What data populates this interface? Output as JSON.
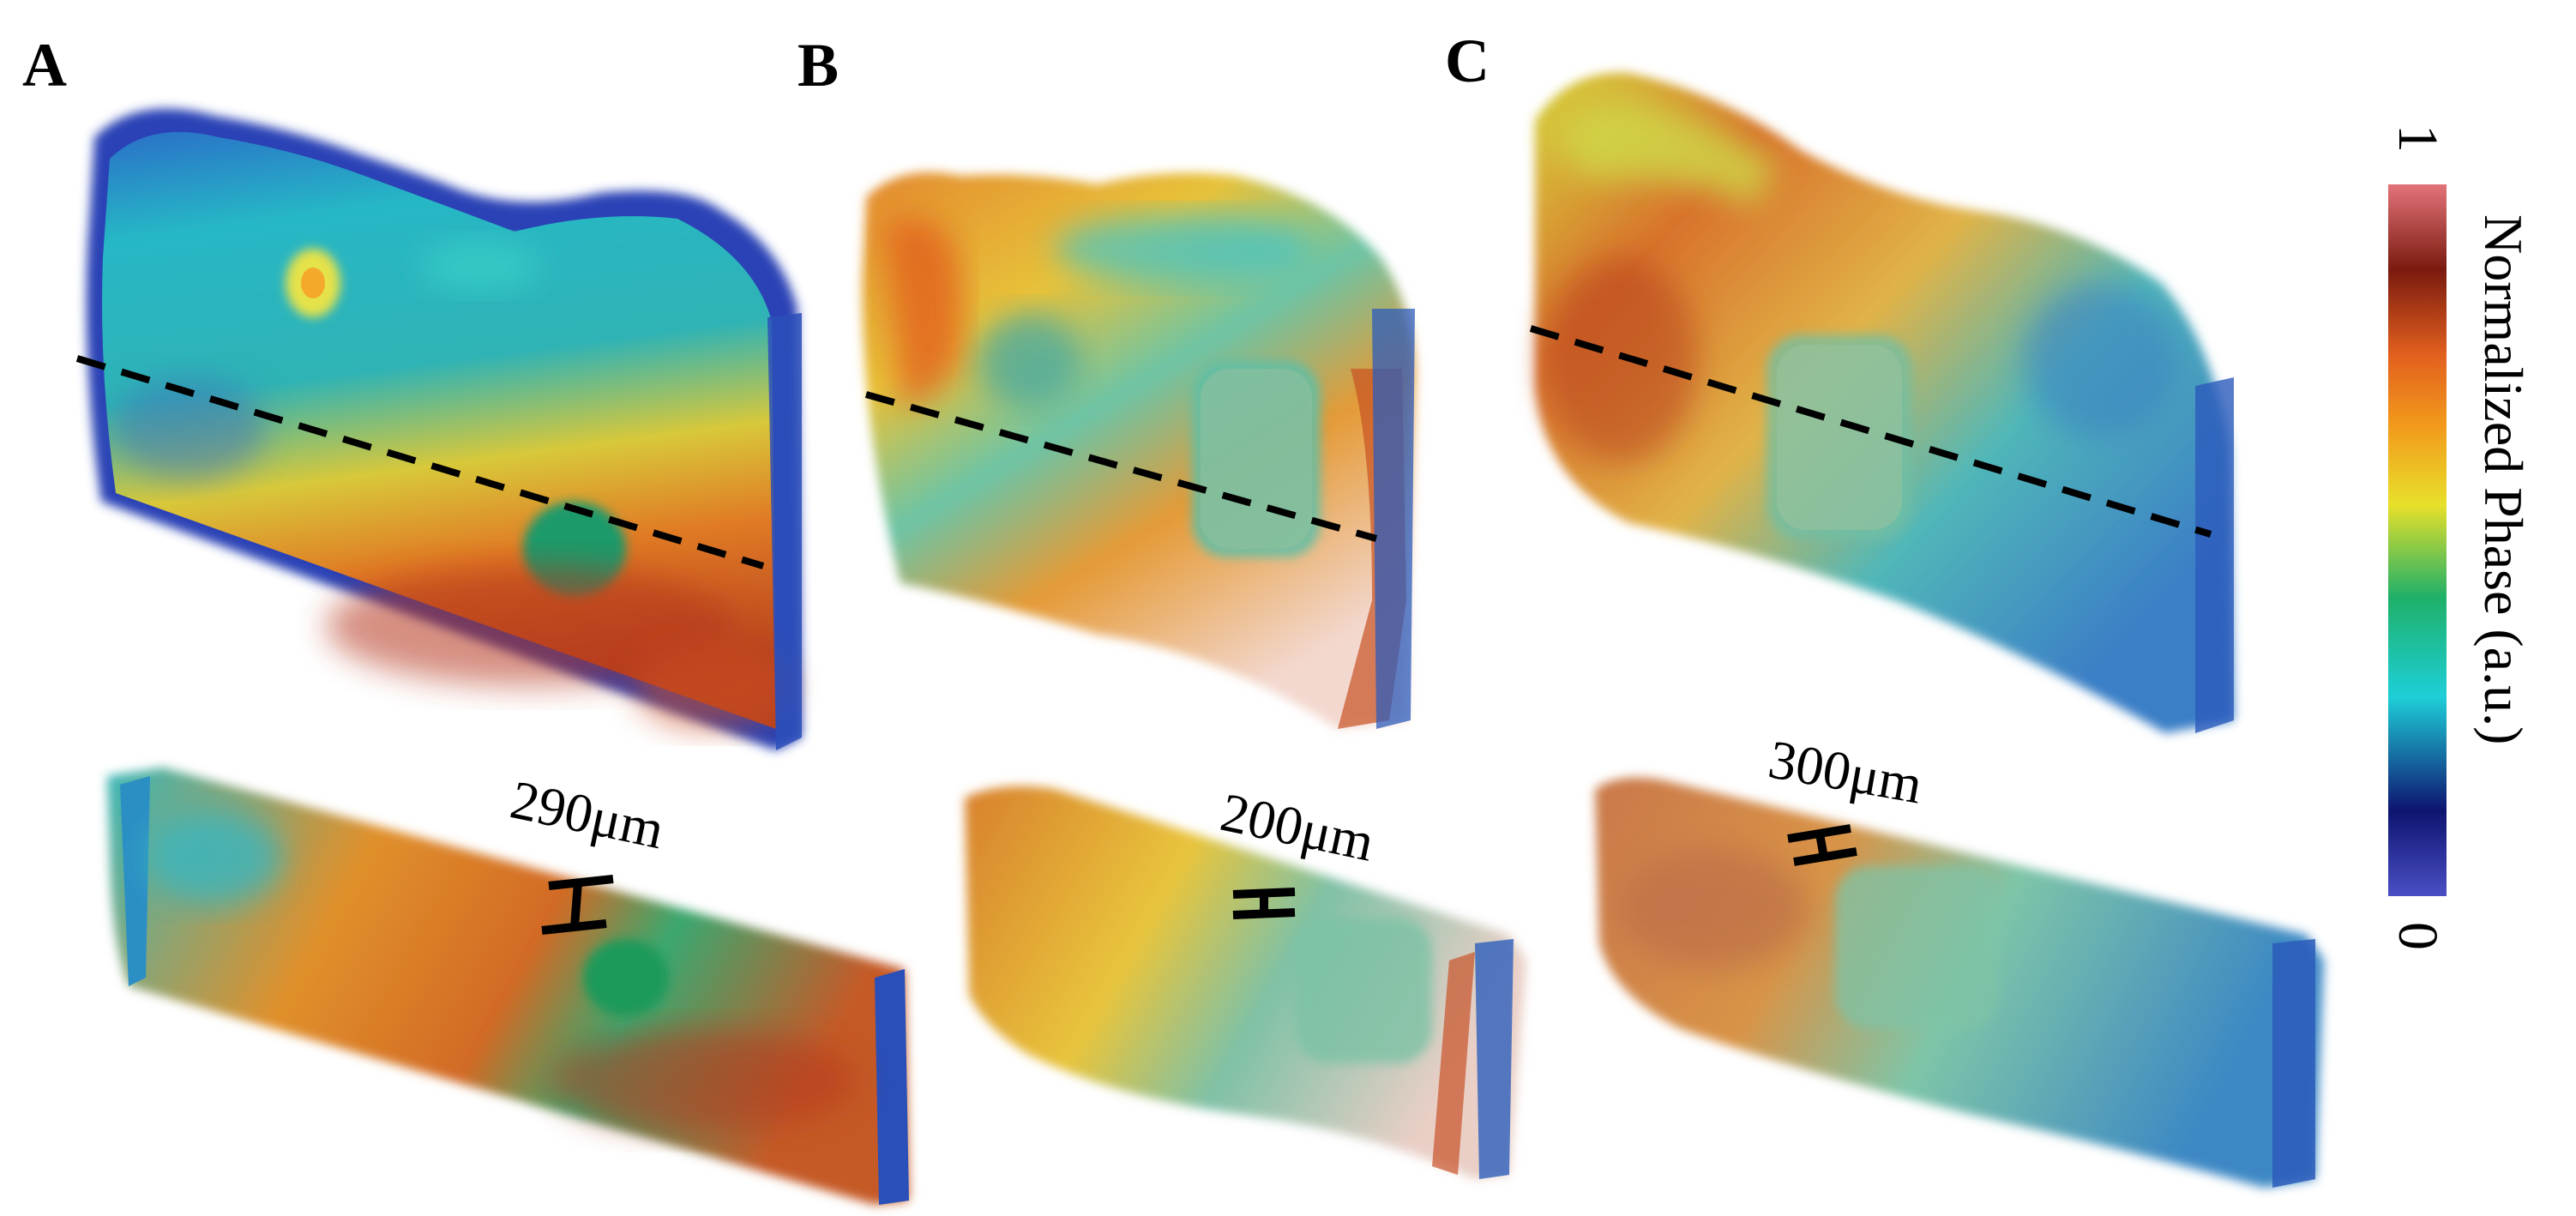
{
  "figure": {
    "panels": [
      {
        "letter": "A",
        "thickness_label": "290μm"
      },
      {
        "letter": "B",
        "thickness_label": "200μm"
      },
      {
        "letter": "C",
        "thickness_label": "300μm"
      }
    ],
    "colorbar": {
      "title": "Normalized Phase (a.u.)",
      "max_label": "1",
      "min_label": "0",
      "colors": [
        "#4a4fc4",
        "#0d1470",
        "#1ecfd8",
        "#1fb068",
        "#e8e02a",
        "#f29a1c",
        "#e2601e",
        "#7a1a0f",
        "#e3737a"
      ]
    }
  }
}
